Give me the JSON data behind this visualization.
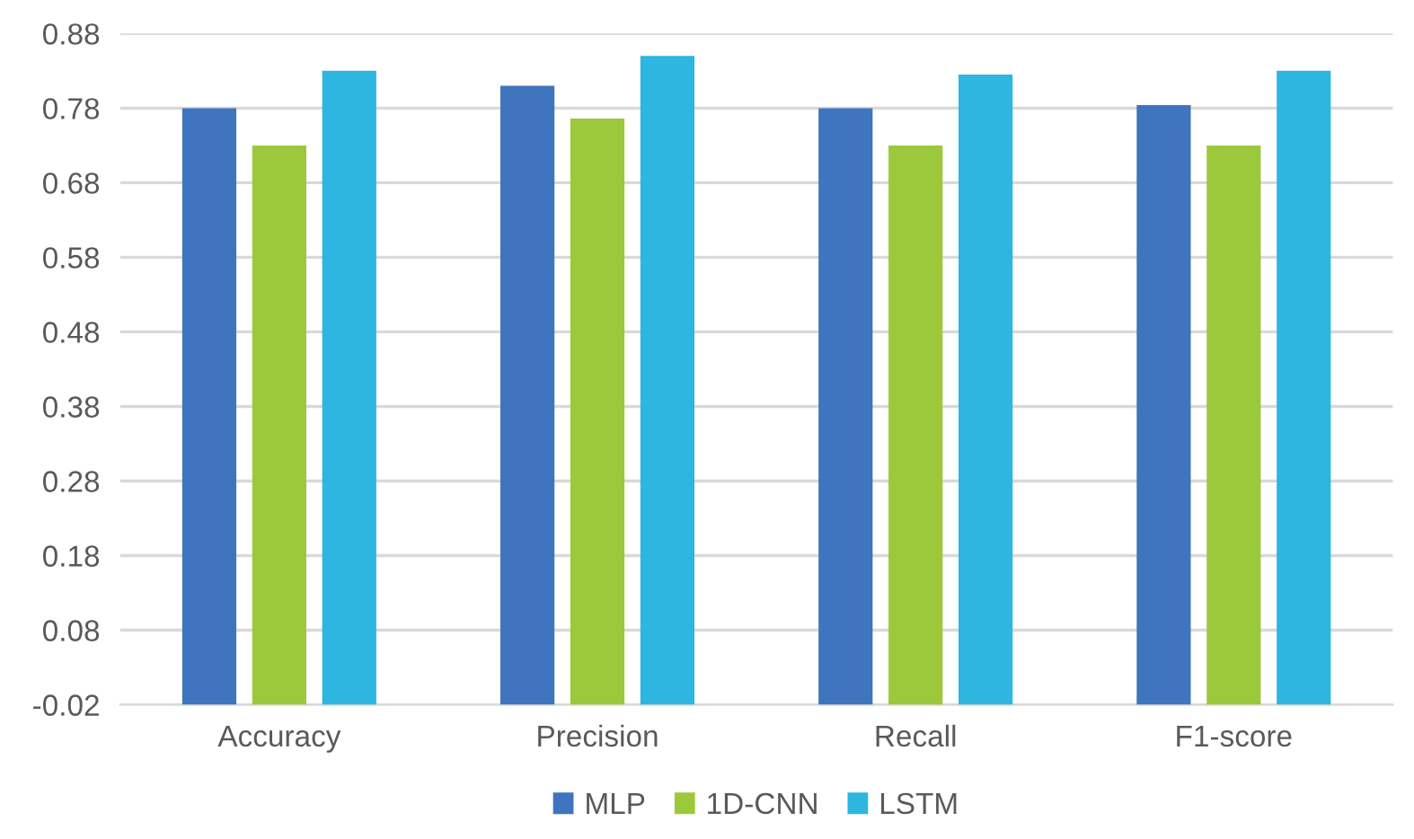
{
  "chart_data": {
    "type": "bar",
    "categories": [
      "Accuracy",
      "Precision",
      "Recall",
      "F1-score"
    ],
    "series": [
      {
        "name": "MLP",
        "color": "#3f74bf",
        "base": [
          -0.02,
          -0.02,
          -0.02,
          -0.02
        ],
        "values": [
          0.8,
          0.83,
          0.8,
          0.804
        ]
      },
      {
        "name": "1D-CNN",
        "color": "#9cc83b",
        "base": [
          -0.02,
          -0.02,
          -0.02,
          -0.02
        ],
        "values": [
          0.75,
          0.786,
          0.75,
          0.75
        ]
      },
      {
        "name": "LSTM",
        "color": "#2db6e0",
        "base": [
          -0.02,
          -0.02,
          -0.02,
          -0.02
        ],
        "values": [
          0.85,
          0.87,
          0.845,
          0.85
        ]
      }
    ],
    "ylim": [
      -0.02,
      0.88
    ],
    "yticks": [
      {
        "value": -0.02,
        "label": "-0.02"
      },
      {
        "value": 0.08,
        "label": "0.08"
      },
      {
        "value": 0.18,
        "label": "0.18"
      },
      {
        "value": 0.28,
        "label": "0.28"
      },
      {
        "value": 0.38,
        "label": "0.38"
      },
      {
        "value": 0.48,
        "label": "0.48"
      },
      {
        "value": 0.58,
        "label": "0.58"
      },
      {
        "value": 0.68,
        "label": "0.68"
      },
      {
        "value": 0.78,
        "label": "0.78"
      },
      {
        "value": 0.88,
        "label": "0.88"
      }
    ],
    "grid": "y",
    "legend": "bottom"
  }
}
